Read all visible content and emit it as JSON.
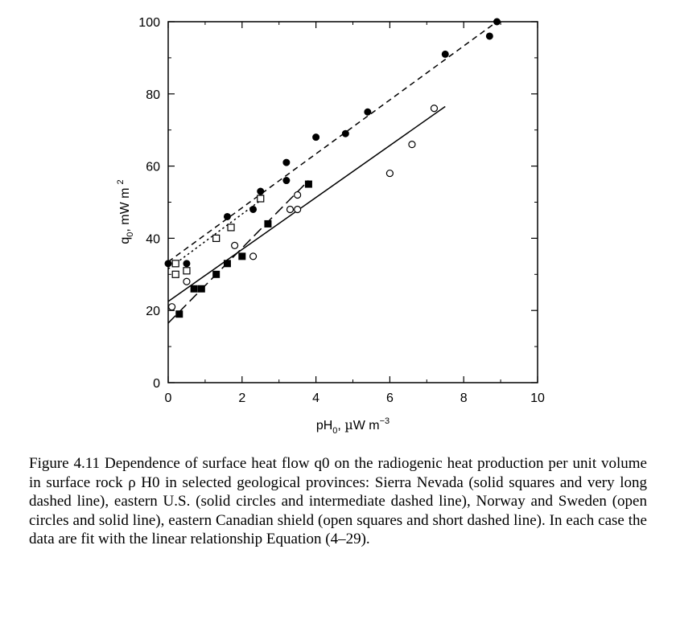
{
  "chart_data": {
    "type": "scatter",
    "xlabel": "pH",
    "xlabel_sub": "0",
    "xlabel_units_prefix": ", ",
    "xlabel_units_mu": "µ",
    "xlabel_units_rest": "W m",
    "xlabel_units_sup": "−3",
    "ylabel": "q",
    "ylabel_sub": "0",
    "ylabel_units": ", mW m",
    "ylabel_units_sup": "2",
    "xlim": [
      0,
      10
    ],
    "ylim": [
      0,
      100
    ],
    "xticks": [
      "0",
      "2",
      "4",
      "6",
      "8",
      "10"
    ],
    "yticks": [
      "0",
      "20",
      "40",
      "60",
      "80",
      "100"
    ],
    "grid": false,
    "series": [
      {
        "marker": "filled-square",
        "line_style": "very long dashed",
        "points": [
          [
            0.3,
            19
          ],
          [
            0.7,
            26
          ],
          [
            0.9,
            26
          ],
          [
            1.3,
            30
          ],
          [
            1.6,
            33
          ],
          [
            2.0,
            35
          ],
          [
            2.7,
            44
          ],
          [
            3.8,
            55
          ]
        ],
        "fit": [
          [
            0.0,
            16.5
          ],
          [
            3.8,
            56
          ]
        ]
      },
      {
        "marker": "filled-circle",
        "line_style": "intermediate dashed",
        "points": [
          [
            0.0,
            33
          ],
          [
            0.5,
            33
          ],
          [
            1.6,
            46
          ],
          [
            2.3,
            48
          ],
          [
            2.5,
            53
          ],
          [
            3.2,
            56
          ],
          [
            3.2,
            61
          ],
          [
            4.0,
            68
          ],
          [
            4.8,
            69
          ],
          [
            5.4,
            75
          ],
          [
            7.5,
            91
          ],
          [
            8.7,
            96
          ],
          [
            8.9,
            100
          ]
        ],
        "fit": [
          [
            0.0,
            33.5
          ],
          [
            8.9,
            100
          ]
        ]
      },
      {
        "marker": "open-circle",
        "line_style": "solid",
        "points": [
          [
            0.1,
            21
          ],
          [
            0.5,
            28
          ],
          [
            1.8,
            38
          ],
          [
            2.3,
            35
          ],
          [
            3.3,
            48
          ],
          [
            3.5,
            48
          ],
          [
            3.5,
            52
          ],
          [
            6.0,
            58
          ],
          [
            6.6,
            66
          ],
          [
            7.2,
            76
          ]
        ],
        "fit": [
          [
            0.0,
            22.5
          ],
          [
            7.5,
            76.5
          ]
        ]
      },
      {
        "marker": "open-square",
        "line_style": "short dashed",
        "points": [
          [
            0.2,
            30
          ],
          [
            0.2,
            33
          ],
          [
            0.5,
            31
          ],
          [
            1.3,
            40
          ],
          [
            1.7,
            43
          ],
          [
            2.5,
            51
          ]
        ],
        "fit": [
          [
            0.0,
            31.5
          ],
          [
            2.5,
            50.5
          ]
        ]
      }
    ]
  },
  "caption": "Figure 4.11 Dependence of surface heat flow q0 on the radiogenic heat production per unit volume in surface rock ρ H0 in selected geological provinces: Sierra Nevada (solid squares and very long dashed line), eastern U.S. (solid circles and intermediate dashed line), Norway and Sweden (open circles and solid line), eastern Canadian shield (open squares and short dashed line). In each case the data are fit with the linear relationship Equation (4–29)."
}
